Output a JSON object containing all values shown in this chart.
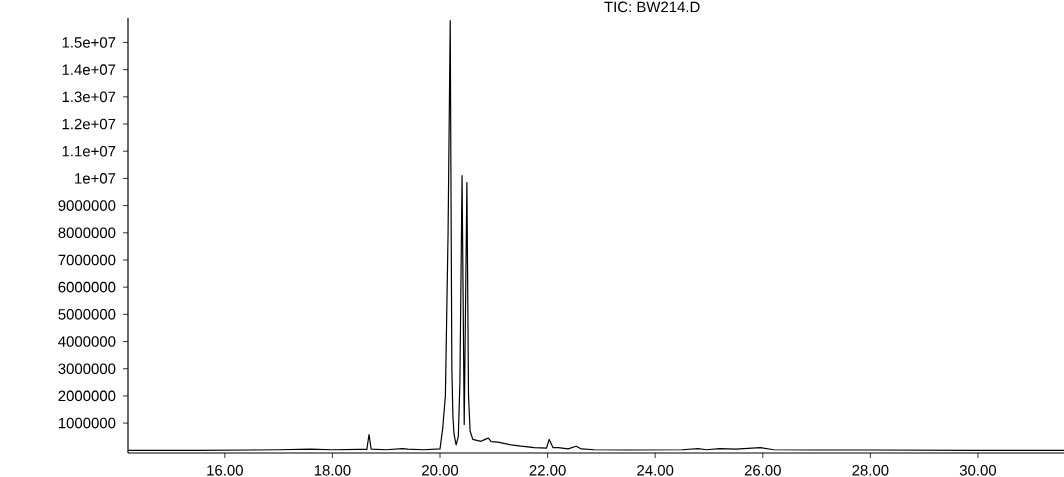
{
  "chart_data": {
    "type": "line",
    "title": "TIC: BW214.D",
    "x": [
      14.2,
      15.5,
      16.5,
      17.0,
      17.6,
      18.0,
      18.5,
      18.64,
      18.68,
      18.72,
      19.0,
      19.3,
      19.4,
      19.7,
      20.0,
      20.05,
      20.1,
      20.15,
      20.19,
      20.22,
      20.24,
      20.26,
      20.3,
      20.34,
      20.37,
      20.41,
      20.45,
      20.5,
      20.53,
      20.56,
      20.61,
      20.76,
      20.84,
      20.9,
      20.95,
      21.08,
      21.14,
      21.32,
      21.51,
      21.75,
      21.98,
      22.03,
      22.1,
      22.2,
      22.38,
      22.53,
      22.63,
      22.87,
      23.5,
      24.5,
      24.8,
      24.95,
      25.2,
      25.5,
      25.95,
      26.2,
      27.0,
      28.0,
      30.0,
      31.6
    ],
    "series": [
      {
        "color": "#000000",
        "values": [
          0,
          0,
          10000,
          20000,
          40000,
          20000,
          30000,
          30000,
          580000,
          40000,
          20000,
          60000,
          40000,
          20000,
          50000,
          800000,
          2000000,
          8000000,
          15800000,
          3000000,
          1250000,
          600000,
          200000,
          500000,
          2500000,
          10100000,
          950000,
          9850000,
          2000000,
          700000,
          400000,
          330000,
          400000,
          450000,
          320000,
          300000,
          270000,
          200000,
          150000,
          100000,
          80000,
          400000,
          100000,
          100000,
          50000,
          150000,
          50000,
          20000,
          10000,
          20000,
          60000,
          20000,
          60000,
          40000,
          100000,
          20000,
          10000,
          10000,
          0,
          0
        ]
      }
    ],
    "xlim": [
      14.2,
      31.6
    ],
    "ylim": [
      -100000,
      15900000
    ],
    "xticks": [
      {
        "value": 16,
        "label": "16.00"
      },
      {
        "value": 18,
        "label": "18.00"
      },
      {
        "value": 20,
        "label": "20.00"
      },
      {
        "value": 22,
        "label": "22.00"
      },
      {
        "value": 24,
        "label": "24.00"
      },
      {
        "value": 26,
        "label": "26.00"
      },
      {
        "value": 28,
        "label": "28.00"
      },
      {
        "value": 30,
        "label": "30.00"
      }
    ],
    "yticks": [
      1000000,
      2000000,
      3000000,
      4000000,
      5000000,
      6000000,
      7000000,
      8000000,
      9000000,
      {
        "value": 10000000,
        "label": "1e+07"
      },
      {
        "value": 11000000,
        "label": "1.1e+07"
      },
      {
        "value": 12000000,
        "label": "1.2e+07"
      },
      {
        "value": 13000000,
        "label": "1.3e+07"
      },
      {
        "value": 14000000,
        "label": "1.4e+07"
      },
      {
        "value": 15000000,
        "label": "1.5e+07"
      }
    ]
  }
}
